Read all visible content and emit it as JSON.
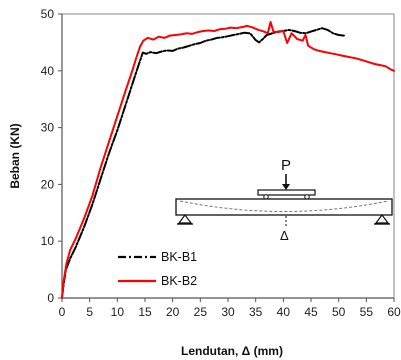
{
  "chart_data": {
    "type": "line",
    "title": "",
    "xlabel": "Lendutan, Δ (mm)",
    "ylabel": "Beban (KN)",
    "xlim": [
      0,
      60
    ],
    "ylim": [
      0,
      50
    ],
    "xticks": [
      0,
      5,
      10,
      15,
      20,
      25,
      30,
      35,
      40,
      45,
      50,
      55,
      60
    ],
    "yticks": [
      0,
      10,
      20,
      30,
      40,
      50
    ],
    "xtick_labels": [
      "0",
      "5",
      "10",
      "15",
      "20",
      "25",
      "30",
      "35",
      "40",
      "45",
      "50",
      "55",
      "60"
    ],
    "ytick_labels": [
      "0",
      "10",
      "20",
      "30",
      "40",
      "50"
    ],
    "grid": false,
    "legend_position": "bottom-left",
    "series": [
      {
        "name": "BK-B1",
        "color": "#000000",
        "style": "dash-dot",
        "points": [
          [
            0,
            0
          ],
          [
            0.3,
            2.5
          ],
          [
            0.7,
            5
          ],
          [
            1.5,
            7
          ],
          [
            2.5,
            9
          ],
          [
            4,
            12.5
          ],
          [
            5.5,
            16.5
          ],
          [
            7,
            21
          ],
          [
            8.5,
            25.5
          ],
          [
            10,
            29.5
          ],
          [
            11.5,
            34
          ],
          [
            13,
            38.5
          ],
          [
            14,
            41.5
          ],
          [
            14.6,
            43.2
          ],
          [
            15.2,
            43
          ],
          [
            16,
            43.3
          ],
          [
            17,
            43.1
          ],
          [
            18,
            43.4
          ],
          [
            19,
            43.6
          ],
          [
            20,
            43.5
          ],
          [
            21,
            43.9
          ],
          [
            22,
            44.1
          ],
          [
            23,
            44.4
          ],
          [
            24,
            44.7
          ],
          [
            25,
            44.9
          ],
          [
            26,
            45.3
          ],
          [
            27,
            45.5
          ],
          [
            28,
            45.8
          ],
          [
            29,
            45.9
          ],
          [
            30,
            46.1
          ],
          [
            31,
            46.3
          ],
          [
            32,
            46.5
          ],
          [
            33,
            46.7
          ],
          [
            34,
            46.6
          ],
          [
            35,
            45.4
          ],
          [
            35.6,
            45
          ],
          [
            36.3,
            45.6
          ],
          [
            37,
            46.3
          ],
          [
            38,
            46.6
          ],
          [
            39,
            46.9
          ],
          [
            40,
            47
          ],
          [
            41,
            47.2
          ],
          [
            42,
            47
          ],
          [
            43,
            46.7
          ],
          [
            44,
            46.6
          ],
          [
            45,
            46.9
          ],
          [
            46,
            47.2
          ],
          [
            47,
            47.5
          ],
          [
            48,
            47.2
          ],
          [
            49,
            46.6
          ],
          [
            50,
            46.3
          ],
          [
            51,
            46.2
          ]
        ]
      },
      {
        "name": "BK-B2",
        "color": "#ff0000",
        "style": "solid",
        "points": [
          [
            0,
            0
          ],
          [
            0.3,
            3
          ],
          [
            0.8,
            6
          ],
          [
            1.5,
            8.5
          ],
          [
            2.5,
            10.5
          ],
          [
            4,
            14
          ],
          [
            5.5,
            18
          ],
          [
            7,
            23
          ],
          [
            8.5,
            27.5
          ],
          [
            10,
            32
          ],
          [
            11.5,
            36.5
          ],
          [
            12.7,
            40
          ],
          [
            13.5,
            42.5
          ],
          [
            14.1,
            44.2
          ],
          [
            14.7,
            45.3
          ],
          [
            15.5,
            45.8
          ],
          [
            16.5,
            45.5
          ],
          [
            17.5,
            46
          ],
          [
            18.5,
            45.8
          ],
          [
            19.5,
            46.2
          ],
          [
            20.5,
            46.3
          ],
          [
            21.5,
            46.4
          ],
          [
            22.5,
            46.6
          ],
          [
            23.5,
            46.5
          ],
          [
            24.5,
            46.8
          ],
          [
            25.5,
            47
          ],
          [
            26.5,
            47.1
          ],
          [
            27.5,
            47
          ],
          [
            28.5,
            47.3
          ],
          [
            29.5,
            47.4
          ],
          [
            30.5,
            47.6
          ],
          [
            31.5,
            47.5
          ],
          [
            32.5,
            47.7
          ],
          [
            33.5,
            47.9
          ],
          [
            34.5,
            47.6
          ],
          [
            35.5,
            47.2
          ],
          [
            36.5,
            46.9
          ],
          [
            37.2,
            46.6
          ],
          [
            37.7,
            48.6
          ],
          [
            38.2,
            46.9
          ],
          [
            39,
            46.8
          ],
          [
            40,
            47
          ],
          [
            40.7,
            44.9
          ],
          [
            41.5,
            46.6
          ],
          [
            42.5,
            45.6
          ],
          [
            43.5,
            45.3
          ],
          [
            44,
            46.3
          ],
          [
            44.5,
            44.4
          ],
          [
            45.5,
            43.8
          ],
          [
            46.5,
            43.5
          ],
          [
            47.5,
            43.3
          ],
          [
            48.5,
            43.1
          ],
          [
            49.5,
            42.9
          ],
          [
            50.5,
            42.7
          ],
          [
            51.5,
            42.5
          ],
          [
            52.5,
            42.3
          ],
          [
            53.5,
            42.1
          ],
          [
            54.5,
            41.8
          ],
          [
            55.5,
            41.5
          ],
          [
            56.5,
            41.2
          ],
          [
            57.5,
            41
          ],
          [
            58.5,
            40.8
          ],
          [
            59.5,
            40.2
          ],
          [
            60,
            40
          ]
        ]
      }
    ],
    "annotation": {
      "load_label": "P",
      "deflection_label": "Δ"
    }
  }
}
